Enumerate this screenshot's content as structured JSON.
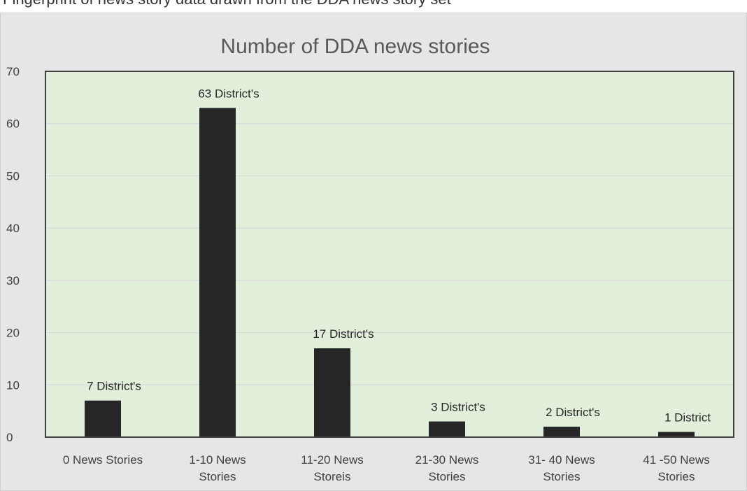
{
  "page": {
    "top_fragment": "Fingerprint of news story data drawn from the DDA news story set"
  },
  "chart_data": {
    "type": "bar",
    "title": "Number of DDA news stories",
    "xlabel": "",
    "ylabel": "",
    "categories": [
      [
        "0 News Stories"
      ],
      [
        "1-10 News",
        "Stories"
      ],
      [
        "11-20 News",
        "Storeis"
      ],
      [
        "21-30 News",
        "Stories"
      ],
      [
        "31- 40 News",
        "Stories"
      ],
      [
        "41 -50  News",
        "Stories"
      ]
    ],
    "values": [
      7,
      63,
      17,
      3,
      2,
      1
    ],
    "data_labels": [
      "7 District's",
      "63 District's",
      "17 District's",
      "3 District's",
      "2 District's",
      "1 District"
    ],
    "ylim": [
      0,
      70
    ],
    "yticks": [
      0,
      10,
      20,
      30,
      40,
      50,
      60,
      70
    ],
    "grid": true,
    "legend": "none",
    "colors": {
      "bar": "#262626",
      "plot_background": "#e2efda",
      "chart_background": "#e6e6e6",
      "gridline": "#d9d9d9",
      "plot_border": "#404040"
    }
  }
}
